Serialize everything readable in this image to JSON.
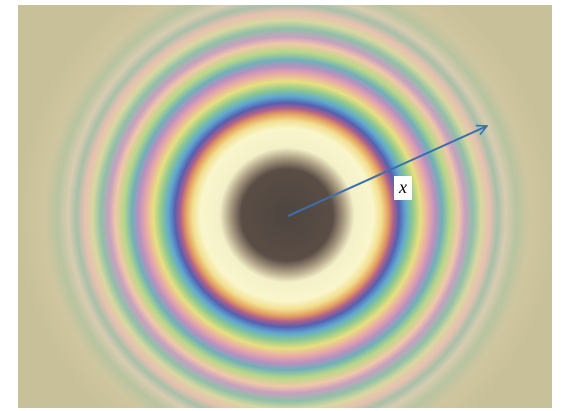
{
  "label": "x"
}
